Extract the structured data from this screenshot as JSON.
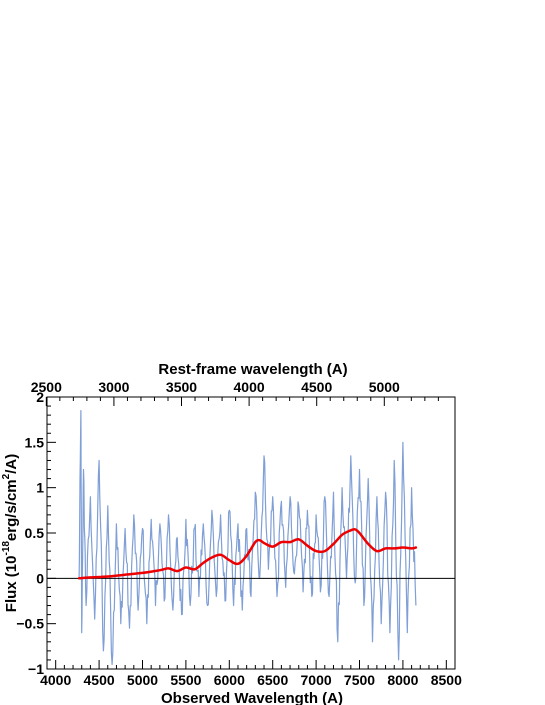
{
  "chart_data": {
    "type": "line",
    "title": "",
    "xlabel": "Observed Wavelength (A)",
    "x2label": "Rest-frame wavelength (A)",
    "ylabel": {
      "prefix": "Flux (10",
      "exp1": "-18",
      "middle": "erg/s/cm",
      "exp2": "2",
      "suffix": "/A)"
    },
    "xlim": [
      3900,
      8600
    ],
    "x2lim": [
      2505,
      5523
    ],
    "ylim": [
      -1,
      2
    ],
    "x_ticks": [
      4000,
      4500,
      5000,
      5500,
      6000,
      6500,
      7000,
      7500,
      8000,
      8500
    ],
    "x2_ticks": [
      2500,
      3000,
      3500,
      4000,
      4500,
      5000
    ],
    "y_ticks": [
      {
        "v": 2,
        "label": "2"
      },
      {
        "v": 1.5,
        "label": "1.5"
      },
      {
        "v": 1,
        "label": "1"
      },
      {
        "v": 0.5,
        "label": "0.5"
      },
      {
        "v": 0,
        "label": "0"
      },
      {
        "v": -0.5,
        "label": "−0.5"
      },
      {
        "v": -1,
        "label": "−1"
      }
    ],
    "zero_line": 0,
    "series": [
      {
        "style": "noisy-fill",
        "color": "#7f9fd6",
        "x_range": [
          4270,
          8150
        ],
        "description_points": [
          [
            4270,
            0.0
          ],
          [
            4290,
            1.85
          ],
          [
            4300,
            -0.6
          ],
          [
            4320,
            1.2
          ],
          [
            4350,
            -0.3
          ],
          [
            4400,
            0.9
          ],
          [
            4450,
            -0.45
          ],
          [
            4500,
            1.3
          ],
          [
            4550,
            -0.8
          ],
          [
            4600,
            0.8
          ],
          [
            4650,
            -0.95
          ],
          [
            4700,
            0.6
          ],
          [
            4750,
            -0.5
          ],
          [
            4800,
            0.55
          ],
          [
            4850,
            -0.55
          ],
          [
            4900,
            0.7
          ],
          [
            4950,
            -0.35
          ],
          [
            5000,
            0.55
          ],
          [
            5050,
            -0.5
          ],
          [
            5100,
            0.65
          ],
          [
            5150,
            -0.3
          ],
          [
            5200,
            0.6
          ],
          [
            5250,
            -0.25
          ],
          [
            5300,
            0.7
          ],
          [
            5350,
            -0.35
          ],
          [
            5400,
            0.45
          ],
          [
            5450,
            -0.4
          ],
          [
            5500,
            0.65
          ],
          [
            5550,
            -0.3
          ],
          [
            5600,
            0.55
          ],
          [
            5650,
            -0.2
          ],
          [
            5700,
            0.6
          ],
          [
            5750,
            -0.3
          ],
          [
            5800,
            0.75
          ],
          [
            5850,
            -0.2
          ],
          [
            5900,
            0.7
          ],
          [
            5950,
            -0.25
          ],
          [
            6000,
            0.75
          ],
          [
            6050,
            -0.3
          ],
          [
            6100,
            0.6
          ],
          [
            6150,
            -0.35
          ],
          [
            6200,
            0.55
          ],
          [
            6250,
            -0.2
          ],
          [
            6300,
            0.95
          ],
          [
            6350,
            0.0
          ],
          [
            6400,
            1.35
          ],
          [
            6450,
            0.1
          ],
          [
            6500,
            0.9
          ],
          [
            6550,
            -0.2
          ],
          [
            6600,
            0.85
          ],
          [
            6650,
            -0.1
          ],
          [
            6700,
            0.9
          ],
          [
            6750,
            0.05
          ],
          [
            6800,
            0.8
          ],
          [
            6850,
            -0.15
          ],
          [
            6900,
            0.75
          ],
          [
            6950,
            -0.2
          ],
          [
            7000,
            0.7
          ],
          [
            7050,
            -0.15
          ],
          [
            7100,
            0.9
          ],
          [
            7150,
            -0.2
          ],
          [
            7200,
            0.95
          ],
          [
            7250,
            -0.7
          ],
          [
            7300,
            1.0
          ],
          [
            7350,
            0.0
          ],
          [
            7400,
            1.35
          ],
          [
            7450,
            -0.05
          ],
          [
            7500,
            1.2
          ],
          [
            7550,
            -0.3
          ],
          [
            7600,
            1.1
          ],
          [
            7650,
            -0.7
          ],
          [
            7700,
            0.9
          ],
          [
            7750,
            -0.5
          ],
          [
            7800,
            0.95
          ],
          [
            7850,
            -0.6
          ],
          [
            7900,
            1.3
          ],
          [
            7950,
            -0.9
          ],
          [
            8000,
            1.5
          ],
          [
            8050,
            -0.6
          ],
          [
            8100,
            1.0
          ],
          [
            8150,
            -0.3
          ]
        ]
      },
      {
        "style": "smooth-line",
        "color": "#ee0000",
        "x": [
          4270,
          4400,
          4600,
          4800,
          5000,
          5200,
          5300,
          5400,
          5500,
          5600,
          5700,
          5800,
          5900,
          6000,
          6100,
          6200,
          6300,
          6350,
          6400,
          6500,
          6600,
          6700,
          6800,
          6900,
          7000,
          7100,
          7200,
          7300,
          7400,
          7450,
          7500,
          7600,
          7700,
          7800,
          7900,
          8000,
          8100,
          8150
        ],
        "y": [
          0.0,
          0.01,
          0.02,
          0.04,
          0.06,
          0.09,
          0.11,
          0.08,
          0.12,
          0.1,
          0.17,
          0.23,
          0.26,
          0.2,
          0.16,
          0.25,
          0.4,
          0.42,
          0.39,
          0.35,
          0.4,
          0.4,
          0.43,
          0.36,
          0.3,
          0.3,
          0.38,
          0.48,
          0.53,
          0.54,
          0.5,
          0.38,
          0.3,
          0.33,
          0.33,
          0.34,
          0.33,
          0.34
        ]
      }
    ]
  }
}
